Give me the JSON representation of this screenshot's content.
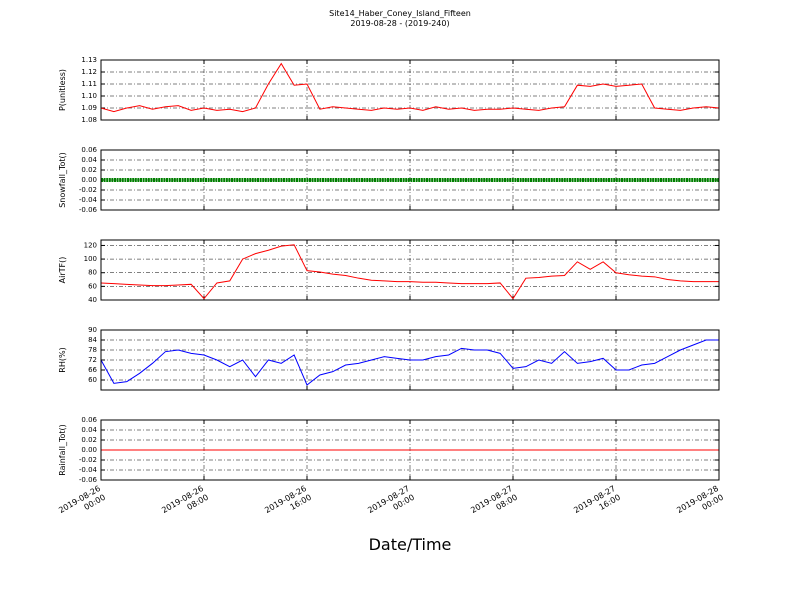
{
  "chart_data": {
    "type": "line",
    "title": "Site14_Haber_Coney_Island_Fifteen",
    "subtitle": "2019-08-28 - (2019-240)",
    "x_label": "Date/Time",
    "grid": true,
    "xlim": [
      "2019-08-26 00:00",
      "2019-08-28 00:00"
    ],
    "xticks": [
      "2019-08-26 00:00",
      "2019-08-26 08:00",
      "2019-08-26 16:00",
      "2019-08-27 00:00",
      "2019-08-27 08:00",
      "2019-08-27 16:00",
      "2019-08-28 00:00"
    ],
    "x": [
      "2019-08-26 00:00",
      "2019-08-26 01:00",
      "2019-08-26 02:00",
      "2019-08-26 03:00",
      "2019-08-26 04:00",
      "2019-08-26 05:00",
      "2019-08-26 06:00",
      "2019-08-26 07:00",
      "2019-08-26 08:00",
      "2019-08-26 09:00",
      "2019-08-26 10:00",
      "2019-08-26 11:00",
      "2019-08-26 12:00",
      "2019-08-26 13:00",
      "2019-08-26 14:00",
      "2019-08-26 15:00",
      "2019-08-26 16:00",
      "2019-08-26 17:00",
      "2019-08-26 18:00",
      "2019-08-26 19:00",
      "2019-08-26 20:00",
      "2019-08-26 21:00",
      "2019-08-26 22:00",
      "2019-08-26 23:00",
      "2019-08-27 00:00",
      "2019-08-27 01:00",
      "2019-08-27 02:00",
      "2019-08-27 03:00",
      "2019-08-27 04:00",
      "2019-08-27 05:00",
      "2019-08-27 06:00",
      "2019-08-27 07:00",
      "2019-08-27 08:00",
      "2019-08-27 09:00",
      "2019-08-27 10:00",
      "2019-08-27 11:00",
      "2019-08-27 12:00",
      "2019-08-27 13:00",
      "2019-08-27 14:00",
      "2019-08-27 15:00",
      "2019-08-27 16:00",
      "2019-08-27 17:00",
      "2019-08-27 18:00",
      "2019-08-27 19:00",
      "2019-08-27 20:00",
      "2019-08-27 21:00",
      "2019-08-27 22:00",
      "2019-08-27 23:00",
      "2019-08-28 00:00"
    ],
    "panels": [
      {
        "ylabel": "P(unitless)",
        "ylim": [
          1.08,
          1.13
        ],
        "yticks": [
          1.08,
          1.09,
          {
            "value": 1.1,
            "label": "1.10"
          },
          1.11,
          1.12,
          1.13
        ],
        "series": [
          {
            "color": "#ff0000",
            "values": [
              1.09,
              1.087,
              1.09,
              1.092,
              1.089,
              1.091,
              1.092,
              1.088,
              1.09,
              1.088,
              1.089,
              1.087,
              1.09,
              1.11,
              1.127,
              1.109,
              1.11,
              1.089,
              1.091,
              1.09,
              1.089,
              1.088,
              1.09,
              1.089,
              1.09,
              1.088,
              1.091,
              1.089,
              1.09,
              1.088,
              1.089,
              1.089,
              1.09,
              1.089,
              1.088,
              1.09,
              1.091,
              1.109,
              1.108,
              1.11,
              1.108,
              1.109,
              1.11,
              1.09,
              1.089,
              1.088,
              1.09,
              1.091,
              1.09
            ]
          }
        ]
      },
      {
        "ylabel": "Snowfall_Tot()",
        "ylim": [
          -0.06,
          0.06
        ],
        "yticks": [
          -0.06,
          -0.04,
          -0.02,
          {
            "value": 0,
            "label": "0.00"
          },
          0.02,
          0.04,
          0.06
        ],
        "series": [
          {
            "color": "#008000",
            "values": [
              0,
              0,
              0,
              0,
              0,
              0,
              0,
              0,
              0,
              0,
              0,
              0,
              0,
              0,
              0,
              0,
              0,
              0,
              0,
              0,
              0,
              0,
              0,
              0,
              0,
              0,
              0,
              0,
              0,
              0,
              0,
              0,
              0,
              0,
              0,
              0,
              0,
              0,
              0,
              0,
              0,
              0,
              0,
              0,
              0,
              0,
              0,
              0,
              0
            ]
          }
        ]
      },
      {
        "ylabel": "AirTF()",
        "ylim": [
          40,
          128
        ],
        "yticks": [
          40,
          60,
          80,
          100,
          120
        ],
        "series": [
          {
            "color": "#ff0000",
            "values": [
              65,
              64,
              63,
              62,
              61,
              61,
              62,
              63,
              42,
              65,
              68,
              100,
              108,
              113,
              119,
              121,
              83,
              81,
              78,
              76,
              72,
              69,
              68,
              67,
              67,
              66,
              66,
              65,
              64,
              64,
              64,
              65,
              42,
              72,
              73,
              75,
              76,
              96,
              85,
              96,
              80,
              77,
              75,
              74,
              70,
              68,
              67,
              67,
              67
            ]
          }
        ]
      },
      {
        "ylabel": "RH(%)",
        "ylim": [
          54,
          90
        ],
        "yticks": [
          60,
          66,
          72,
          78,
          84,
          90
        ],
        "series": [
          {
            "color": "#0000ff",
            "values": [
              72,
              58,
              59,
              64,
              70,
              77,
              78,
              76,
              75,
              72,
              68,
              72,
              62,
              72,
              70,
              75,
              57,
              63,
              65,
              69,
              70,
              72,
              74,
              73,
              72,
              72,
              74,
              75,
              79,
              78,
              78,
              76,
              67,
              68,
              72,
              70,
              77,
              70,
              71,
              73,
              66,
              66,
              69,
              70,
              74,
              78,
              81,
              84,
              84
            ]
          }
        ]
      },
      {
        "ylabel": "Rainfall_Tot()",
        "ylim": [
          -0.06,
          0.06
        ],
        "yticks": [
          -0.06,
          -0.04,
          -0.02,
          {
            "value": 0,
            "label": "0.00"
          },
          0.02,
          0.04,
          0.06
        ],
        "series": [
          {
            "color": "#ff0000",
            "values": [
              0,
              0,
              0,
              0,
              0,
              0,
              0,
              0,
              0,
              0,
              0,
              0,
              0,
              0,
              0,
              0,
              0,
              0,
              0,
              0,
              0,
              0,
              0,
              0,
              0,
              0,
              0,
              0,
              0,
              0,
              0,
              0,
              0,
              0,
              0,
              0,
              0,
              0,
              0,
              0,
              0,
              0,
              0,
              0,
              0,
              0,
              0,
              0,
              0
            ]
          }
        ]
      }
    ]
  }
}
